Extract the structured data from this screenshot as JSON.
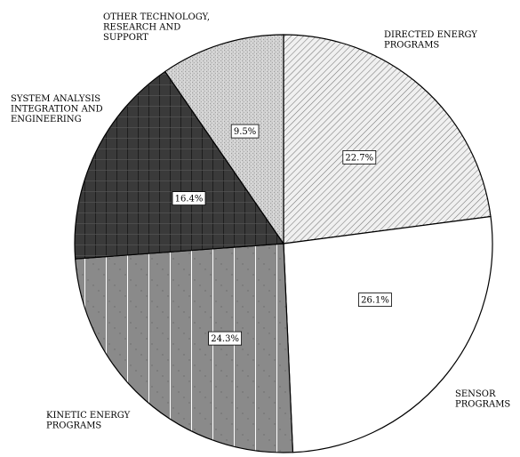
{
  "chart_data": {
    "type": "pie",
    "title": "",
    "start_angle_deg": 0,
    "direction": "clockwise",
    "slices": [
      {
        "label_lines": [
          "DIRECTED ENERGY",
          "PROGRAMS"
        ],
        "value": 22.7,
        "value_label": "22.7%",
        "fill": "#e6e6e6",
        "pattern": "diagonal-hatch"
      },
      {
        "label_lines": [
          "SENSOR",
          "PROGRAMS"
        ],
        "value": 26.1,
        "value_label": "26.1%",
        "fill": "#ffffff",
        "pattern": "none"
      },
      {
        "label_lines": [
          "KINETIC ENERGY",
          "PROGRAMS"
        ],
        "value": 24.3,
        "value_label": "24.3%",
        "fill": "#8c8c8c",
        "pattern": "dotted-grid"
      },
      {
        "label_lines": [
          "SYSTEM ANALYSIS",
          "INTEGRATION AND",
          "ENGINEERING"
        ],
        "value": 16.4,
        "value_label": "16.4%",
        "fill": "#3a3a3a",
        "pattern": "grid"
      },
      {
        "label_lines": [
          "OTHER TECHNOLOGY,",
          "RESEARCH AND",
          "SUPPORT"
        ],
        "value": 9.5,
        "value_label": "9.5%",
        "fill": "#c8c8c8",
        "pattern": "stipple"
      }
    ]
  }
}
